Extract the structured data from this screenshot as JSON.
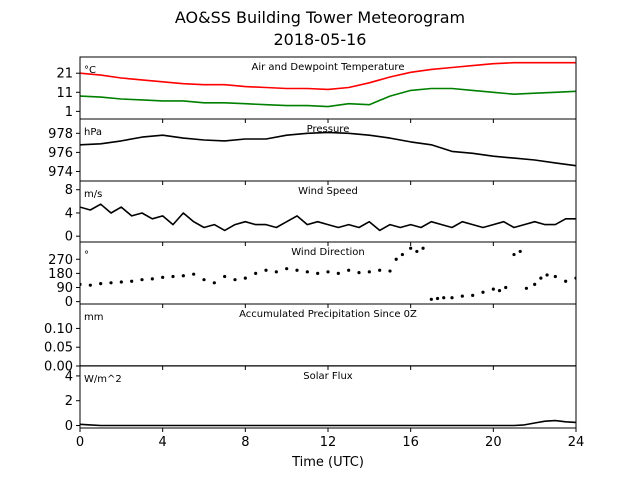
{
  "figure": {
    "title": "AO&SS Building Tower Meteorogram",
    "subtitle": "2018-05-16",
    "xlabel": "Time (UTC)"
  },
  "chart_data": [
    {
      "type": "line",
      "title": "Air and Dewpoint Temperature",
      "unit_label": "°C",
      "xlim": [
        0,
        24
      ],
      "x_ticks": [
        0,
        4,
        8,
        12,
        16,
        20,
        24
      ],
      "ylim": [
        -3,
        29.5
      ],
      "y_ticks": [
        1,
        11,
        21
      ],
      "series": [
        {
          "color": "#ff0000",
          "x": [
            0,
            1,
            2,
            3,
            4,
            5,
            6,
            7,
            8,
            9,
            10,
            11,
            12,
            13,
            14,
            15,
            16,
            17,
            18,
            19,
            20,
            21,
            22,
            23,
            24
          ],
          "y": [
            21,
            20,
            18.5,
            17.5,
            16.5,
            15.5,
            15,
            15,
            14,
            13.5,
            13,
            13,
            12.5,
            13.5,
            16,
            19,
            21.5,
            23,
            24,
            25,
            26,
            26.5,
            26.5,
            26.5,
            26.5
          ]
        },
        {
          "color": "#008000",
          "x": [
            0,
            1,
            2,
            3,
            4,
            5,
            6,
            7,
            8,
            9,
            10,
            11,
            12,
            13,
            14,
            15,
            16,
            17,
            18,
            19,
            20,
            21,
            22,
            23,
            24
          ],
          "y": [
            9,
            8.5,
            7.5,
            7,
            6.5,
            6.5,
            5.5,
            5.5,
            5,
            4.5,
            4,
            4,
            3.5,
            5,
            4.5,
            9,
            12,
            13,
            13,
            12,
            11,
            10,
            10.5,
            11,
            11.5
          ]
        }
      ]
    },
    {
      "type": "line",
      "title": "Pressure",
      "unit_label": "hPa",
      "xlim": [
        0,
        24
      ],
      "ylim": [
        973,
        979.5
      ],
      "y_ticks": [
        974,
        976,
        978
      ],
      "series": [
        {
          "color": "#000000",
          "x": [
            0,
            1,
            2,
            3,
            4,
            5,
            6,
            7,
            8,
            9,
            10,
            11,
            12,
            13,
            14,
            15,
            16,
            17,
            18,
            19,
            20,
            21,
            22,
            23,
            24
          ],
          "y": [
            976.8,
            976.9,
            977.2,
            977.6,
            977.8,
            977.5,
            977.3,
            977.2,
            977.4,
            977.4,
            977.8,
            978.0,
            978.1,
            978.0,
            977.8,
            977.5,
            977.1,
            976.8,
            976.1,
            975.9,
            975.6,
            975.4,
            975.2,
            974.9,
            974.6
          ]
        }
      ]
    },
    {
      "type": "line",
      "title": "Wind Speed",
      "unit_label": "m/s",
      "xlim": [
        0,
        24
      ],
      "ylim": [
        -1,
        9.5
      ],
      "y_ticks": [
        0,
        4,
        8
      ],
      "series": [
        {
          "color": "#000000",
          "x": [
            0,
            0.5,
            1,
            1.5,
            2,
            2.5,
            3,
            3.5,
            4,
            4.5,
            5,
            5.5,
            6,
            6.5,
            7,
            7.5,
            8,
            8.5,
            9,
            9.5,
            10,
            10.5,
            11,
            11.5,
            12,
            12.5,
            13,
            13.5,
            14,
            14.5,
            15,
            15.5,
            16,
            16.5,
            17,
            17.5,
            18,
            18.5,
            19,
            19.5,
            20,
            20.5,
            21,
            21.5,
            22,
            22.5,
            23,
            23.5,
            24
          ],
          "y": [
            5,
            4.5,
            5.5,
            4,
            5,
            3.5,
            4,
            3,
            3.5,
            2,
            4,
            2.5,
            1.5,
            2,
            1,
            2,
            2.5,
            2,
            2,
            1.5,
            2.5,
            3.5,
            2,
            2.5,
            2,
            1.5,
            2,
            1.5,
            2.5,
            1,
            2,
            1.5,
            2,
            1.5,
            2.5,
            2,
            1.5,
            2.5,
            2,
            1.5,
            2,
            2.5,
            1.5,
            2,
            2.5,
            2,
            2,
            3,
            3
          ]
        }
      ]
    },
    {
      "type": "scatter",
      "title": "Wind Direction",
      "unit_label": "°",
      "xlim": [
        0,
        24
      ],
      "ylim": [
        -15,
        380
      ],
      "y_ticks": [
        0,
        90,
        180,
        270
      ],
      "series": [
        {
          "color": "#000000",
          "x": [
            0,
            0.5,
            1,
            1.5,
            2,
            2.5,
            3,
            3.5,
            4,
            4.5,
            5,
            5.5,
            6,
            6.5,
            7,
            7.5,
            8,
            8.5,
            9,
            9.5,
            10,
            10.5,
            11,
            11.5,
            12,
            12.5,
            13,
            13.5,
            14,
            14.5,
            15,
            15.3,
            15.6,
            16,
            16.3,
            16.6,
            17,
            17.3,
            17.6,
            18,
            18.5,
            19,
            19.5,
            20,
            20.3,
            20.6,
            21,
            21.3,
            21.6,
            22,
            22.3,
            22.6,
            23,
            23.5,
            24
          ],
          "y": [
            110,
            105,
            115,
            120,
            125,
            130,
            140,
            145,
            155,
            160,
            165,
            175,
            140,
            120,
            160,
            140,
            150,
            180,
            200,
            190,
            210,
            200,
            190,
            180,
            190,
            180,
            200,
            185,
            190,
            200,
            195,
            270,
            300,
            340,
            320,
            340,
            15,
            20,
            25,
            25,
            35,
            40,
            60,
            80,
            70,
            90,
            300,
            320,
            85,
            110,
            150,
            170,
            160,
            130,
            150
          ]
        }
      ]
    },
    {
      "type": "line",
      "title": "Accumulated Precipitation Since 0Z",
      "unit_label": "mm",
      "xlim": [
        0,
        24
      ],
      "ylim": [
        0,
        0.165
      ],
      "y_ticks": [
        0.0,
        0.05,
        0.1
      ],
      "y_tick_labels": [
        "0.00",
        "0.05",
        "0.10"
      ],
      "series": [
        {
          "color": "#000000",
          "x": [
            0,
            24
          ],
          "y": [
            0,
            0
          ]
        }
      ]
    },
    {
      "type": "line",
      "title": "Solar Flux",
      "unit_label": "W/m^2",
      "xlim": [
        0,
        24
      ],
      "ylim": [
        -0.2,
        4.8
      ],
      "y_ticks": [
        0,
        2,
        4
      ],
      "series": [
        {
          "color": "#000000",
          "x": [
            0,
            0.5,
            1,
            2,
            4,
            6,
            8,
            10,
            12,
            14,
            16,
            18,
            20,
            21,
            21.5,
            22,
            22.5,
            23,
            23.5,
            24
          ],
          "y": [
            0.1,
            0.05,
            0,
            0,
            0,
            0,
            0,
            0,
            0,
            0,
            0,
            0,
            0,
            0,
            0.05,
            0.2,
            0.35,
            0.4,
            0.3,
            0.25
          ]
        }
      ]
    }
  ]
}
